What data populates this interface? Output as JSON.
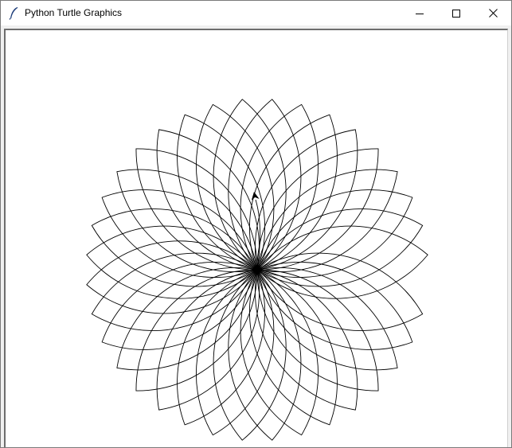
{
  "window": {
    "title": "Python Turtle Graphics",
    "icon": "feather-icon",
    "controls": [
      "minimize-icon",
      "maximize-icon",
      "close-icon"
    ]
  },
  "drawing": {
    "shape": "petal",
    "petal_count": 36,
    "rotation_step_degrees": 10,
    "pen_color": "#000000",
    "background_color": "#ffffff",
    "turtle_shape": "classic arrow",
    "turtle_color": "#000000"
  }
}
